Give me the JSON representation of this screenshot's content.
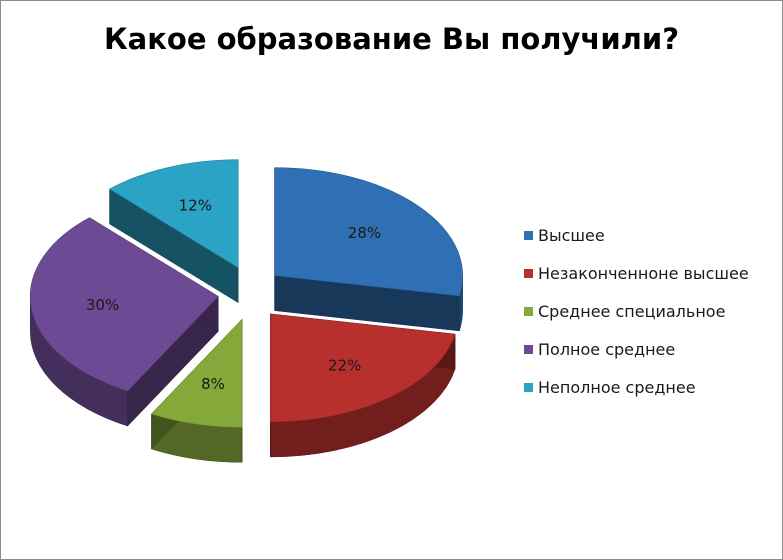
{
  "chart_data": {
    "type": "pie",
    "title": "Какое образование Вы получили?",
    "categories": [
      "Высшее",
      "Незаконченноне высшее",
      "Среднее специальное",
      "Полное среднее",
      "Неполное среднее"
    ],
    "values": [
      28,
      22,
      8,
      30,
      12
    ],
    "data_labels": [
      "28%",
      "22%",
      "8%",
      "30%",
      "12%"
    ],
    "colors": [
      "#2f6fb4",
      "#b8302e",
      "#84a83a",
      "#6d4a94",
      "#2aa3c5"
    ],
    "style": "3d-exploded",
    "legend": "right"
  }
}
